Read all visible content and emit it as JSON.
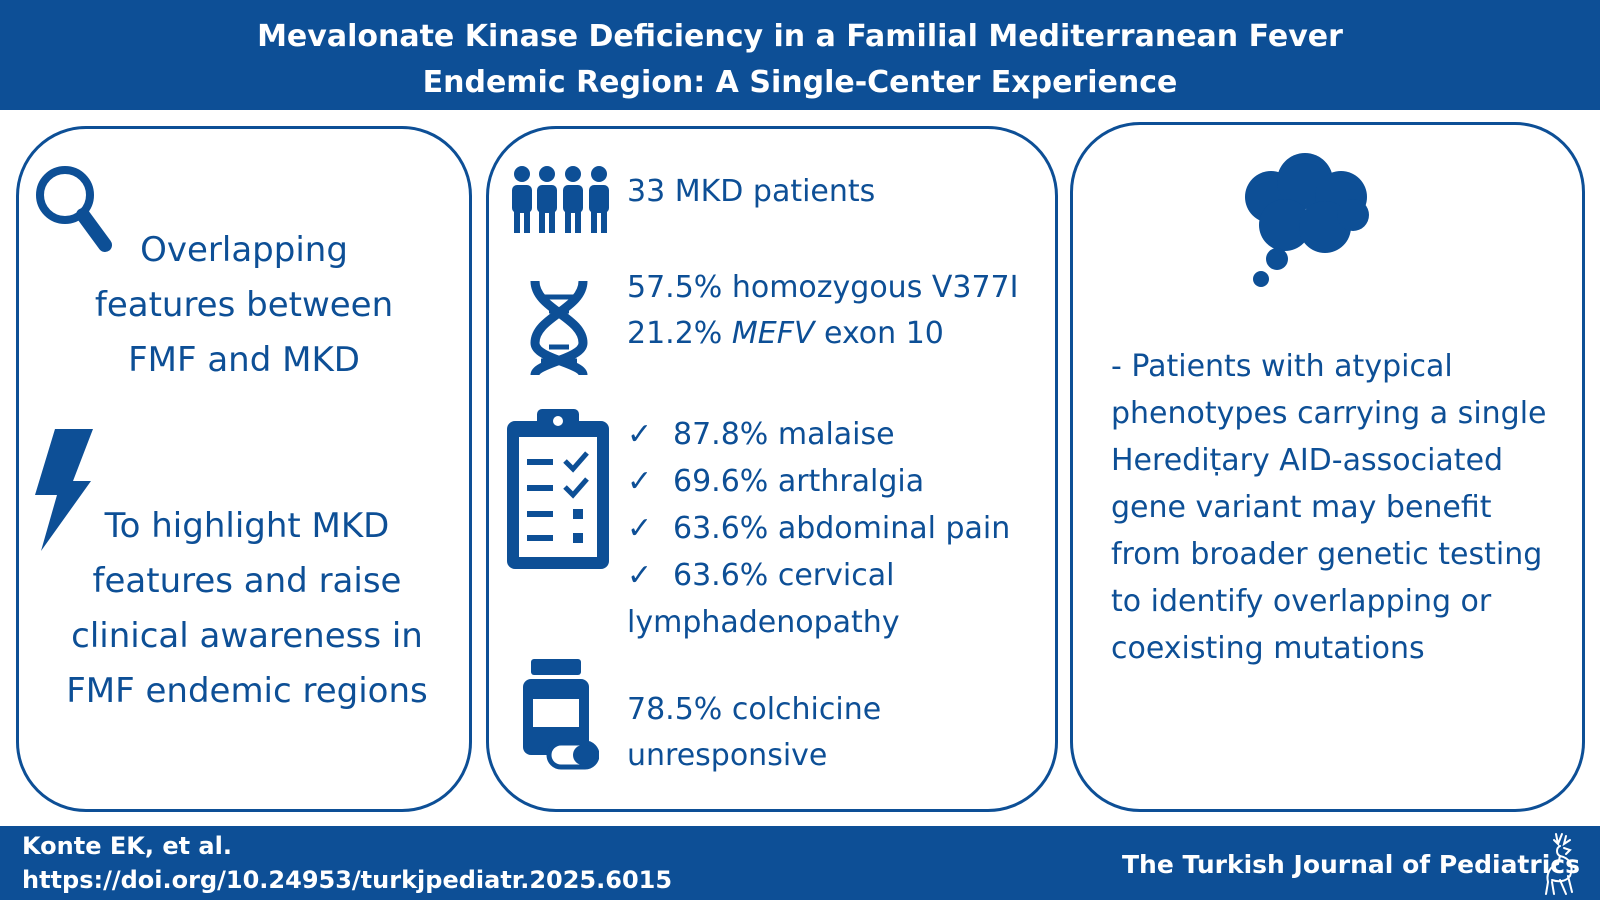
{
  "header": {
    "title_line1": "Mevalonate Kinase Deficiency in a Familial Mediterranean Fever",
    "title_line2": "Endemic Region: A Single-Center Experience"
  },
  "left_panel": {
    "statement": "Overlapping features between FMF and MKD",
    "aim": "To highlight MKD features and raise clinical awareness in FMF endemic regions",
    "icons": [
      "magnifying-glass-icon",
      "lightning-bolt-icon"
    ]
  },
  "middle_panel": {
    "patients": "33 MKD patients",
    "genetics_line1": "57.5% homozygous V377I",
    "genetics_line2_pct": "21.2%",
    "genetics_line2_gene": "MEFV",
    "genetics_line2_rest": "exon 10",
    "checkmark": "✓",
    "symptoms": [
      {
        "text": "87.8% malaise"
      },
      {
        "text": "69.6% arthralgia"
      },
      {
        "text": "63.6% abdominal pain"
      },
      {
        "text": "63.6% cervical",
        "continuation": "lymphadenopathy"
      }
    ],
    "colchicine_line1": "78.5% colchicine",
    "colchicine_line2": "unresponsive",
    "icons": [
      "people-icon",
      "dna-icon",
      "clipboard-checklist-icon",
      "medicine-bottle-icon"
    ]
  },
  "right_panel": {
    "conclusion": "- Patients with atypical phenotypes carrying a single Herediṭary AID-associated gene variant may benefit from broader genetic testing to identify overlapping or coexisting mutations",
    "icons": [
      "thought-cloud-icon"
    ]
  },
  "footer": {
    "author": "Konte EK, et al.",
    "doi": "https://doi.org/10.24953/turkjpediatr.2025.6015",
    "journal": "The Turkish Journal of Pediatrics",
    "icons": [
      "deer-logo-icon"
    ]
  },
  "colors": {
    "primary": "#0d4f96",
    "background": "#ffffff"
  }
}
